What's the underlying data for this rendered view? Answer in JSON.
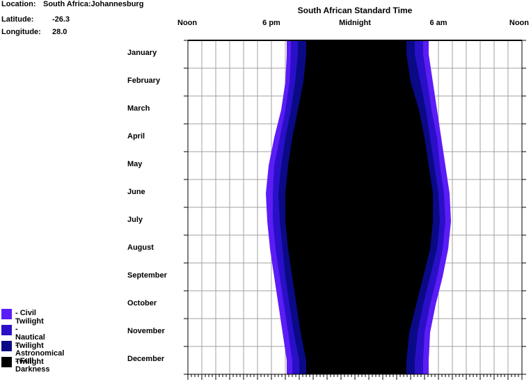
{
  "header": {
    "location_label": "Location:",
    "location_value": "South Africa:Johannesburg",
    "latitude_label": "Latitude:",
    "latitude_value": "-26.3",
    "longitude_label": "Longitude:",
    "longitude_value": "28.0"
  },
  "legend": [
    {
      "label": "- Civil Twilight",
      "color": "#5b1cf6"
    },
    {
      "label": "- Nautical Twilight",
      "color": "#2a0fc8"
    },
    {
      "label": "- Astronomical Twilight",
      "color": "#0a0a86"
    },
    {
      "label": "- Full Darkness",
      "color": "#000000"
    }
  ],
  "chart_data": {
    "type": "area",
    "title": "South African Standard Time",
    "x_axis": {
      "range_hours": [
        12,
        36
      ],
      "tick_labels": [
        {
          "hour": 12,
          "label": "Noon"
        },
        {
          "hour": 18,
          "label": "6 pm"
        },
        {
          "hour": 24,
          "label": "Midnight"
        },
        {
          "hour": 30,
          "label": "6 am"
        },
        {
          "hour": 36,
          "label": "Noon"
        }
      ]
    },
    "y_axis": {
      "categories": [
        "January",
        "February",
        "March",
        "April",
        "May",
        "June",
        "July",
        "August",
        "September",
        "October",
        "November",
        "December"
      ]
    },
    "series": [
      {
        "name": "Civil Twilight",
        "color": "#5b1cf6",
        "start_hours": [
          19.1,
          19.0,
          18.7,
          18.2,
          17.8,
          17.6,
          17.7,
          17.9,
          18.2,
          18.5,
          18.8,
          19.1
        ],
        "end_hours": [
          29.3,
          29.6,
          29.9,
          30.2,
          30.5,
          30.8,
          30.9,
          30.7,
          30.3,
          29.8,
          29.4,
          29.3
        ]
      },
      {
        "name": "Nautical Twilight",
        "color": "#2a0fc8",
        "start_hours": [
          19.4,
          19.3,
          19.0,
          18.6,
          18.2,
          18.1,
          18.1,
          18.3,
          18.6,
          18.9,
          19.2,
          19.5
        ],
        "end_hours": [
          28.9,
          29.2,
          29.5,
          29.9,
          30.1,
          30.4,
          30.5,
          30.3,
          29.9,
          29.4,
          29.0,
          28.9
        ]
      },
      {
        "name": "Astronomical Twilight",
        "color": "#0a0a86",
        "start_hours": [
          19.9,
          19.7,
          19.4,
          19.0,
          18.7,
          18.5,
          18.6,
          18.8,
          19.0,
          19.3,
          19.6,
          20.0
        ],
        "end_hours": [
          28.3,
          28.7,
          29.1,
          29.4,
          29.7,
          30.0,
          30.1,
          29.9,
          29.4,
          28.9,
          28.5,
          28.3
        ]
      },
      {
        "name": "Full Darkness",
        "color": "#000000",
        "start_hours": [
          20.5,
          20.3,
          19.9,
          19.5,
          19.2,
          19.0,
          19.0,
          19.2,
          19.5,
          19.8,
          20.1,
          20.5
        ],
        "end_hours": [
          27.7,
          28.0,
          28.6,
          29.0,
          29.3,
          29.6,
          29.6,
          29.4,
          28.9,
          28.4,
          27.9,
          27.7
        ]
      }
    ]
  }
}
